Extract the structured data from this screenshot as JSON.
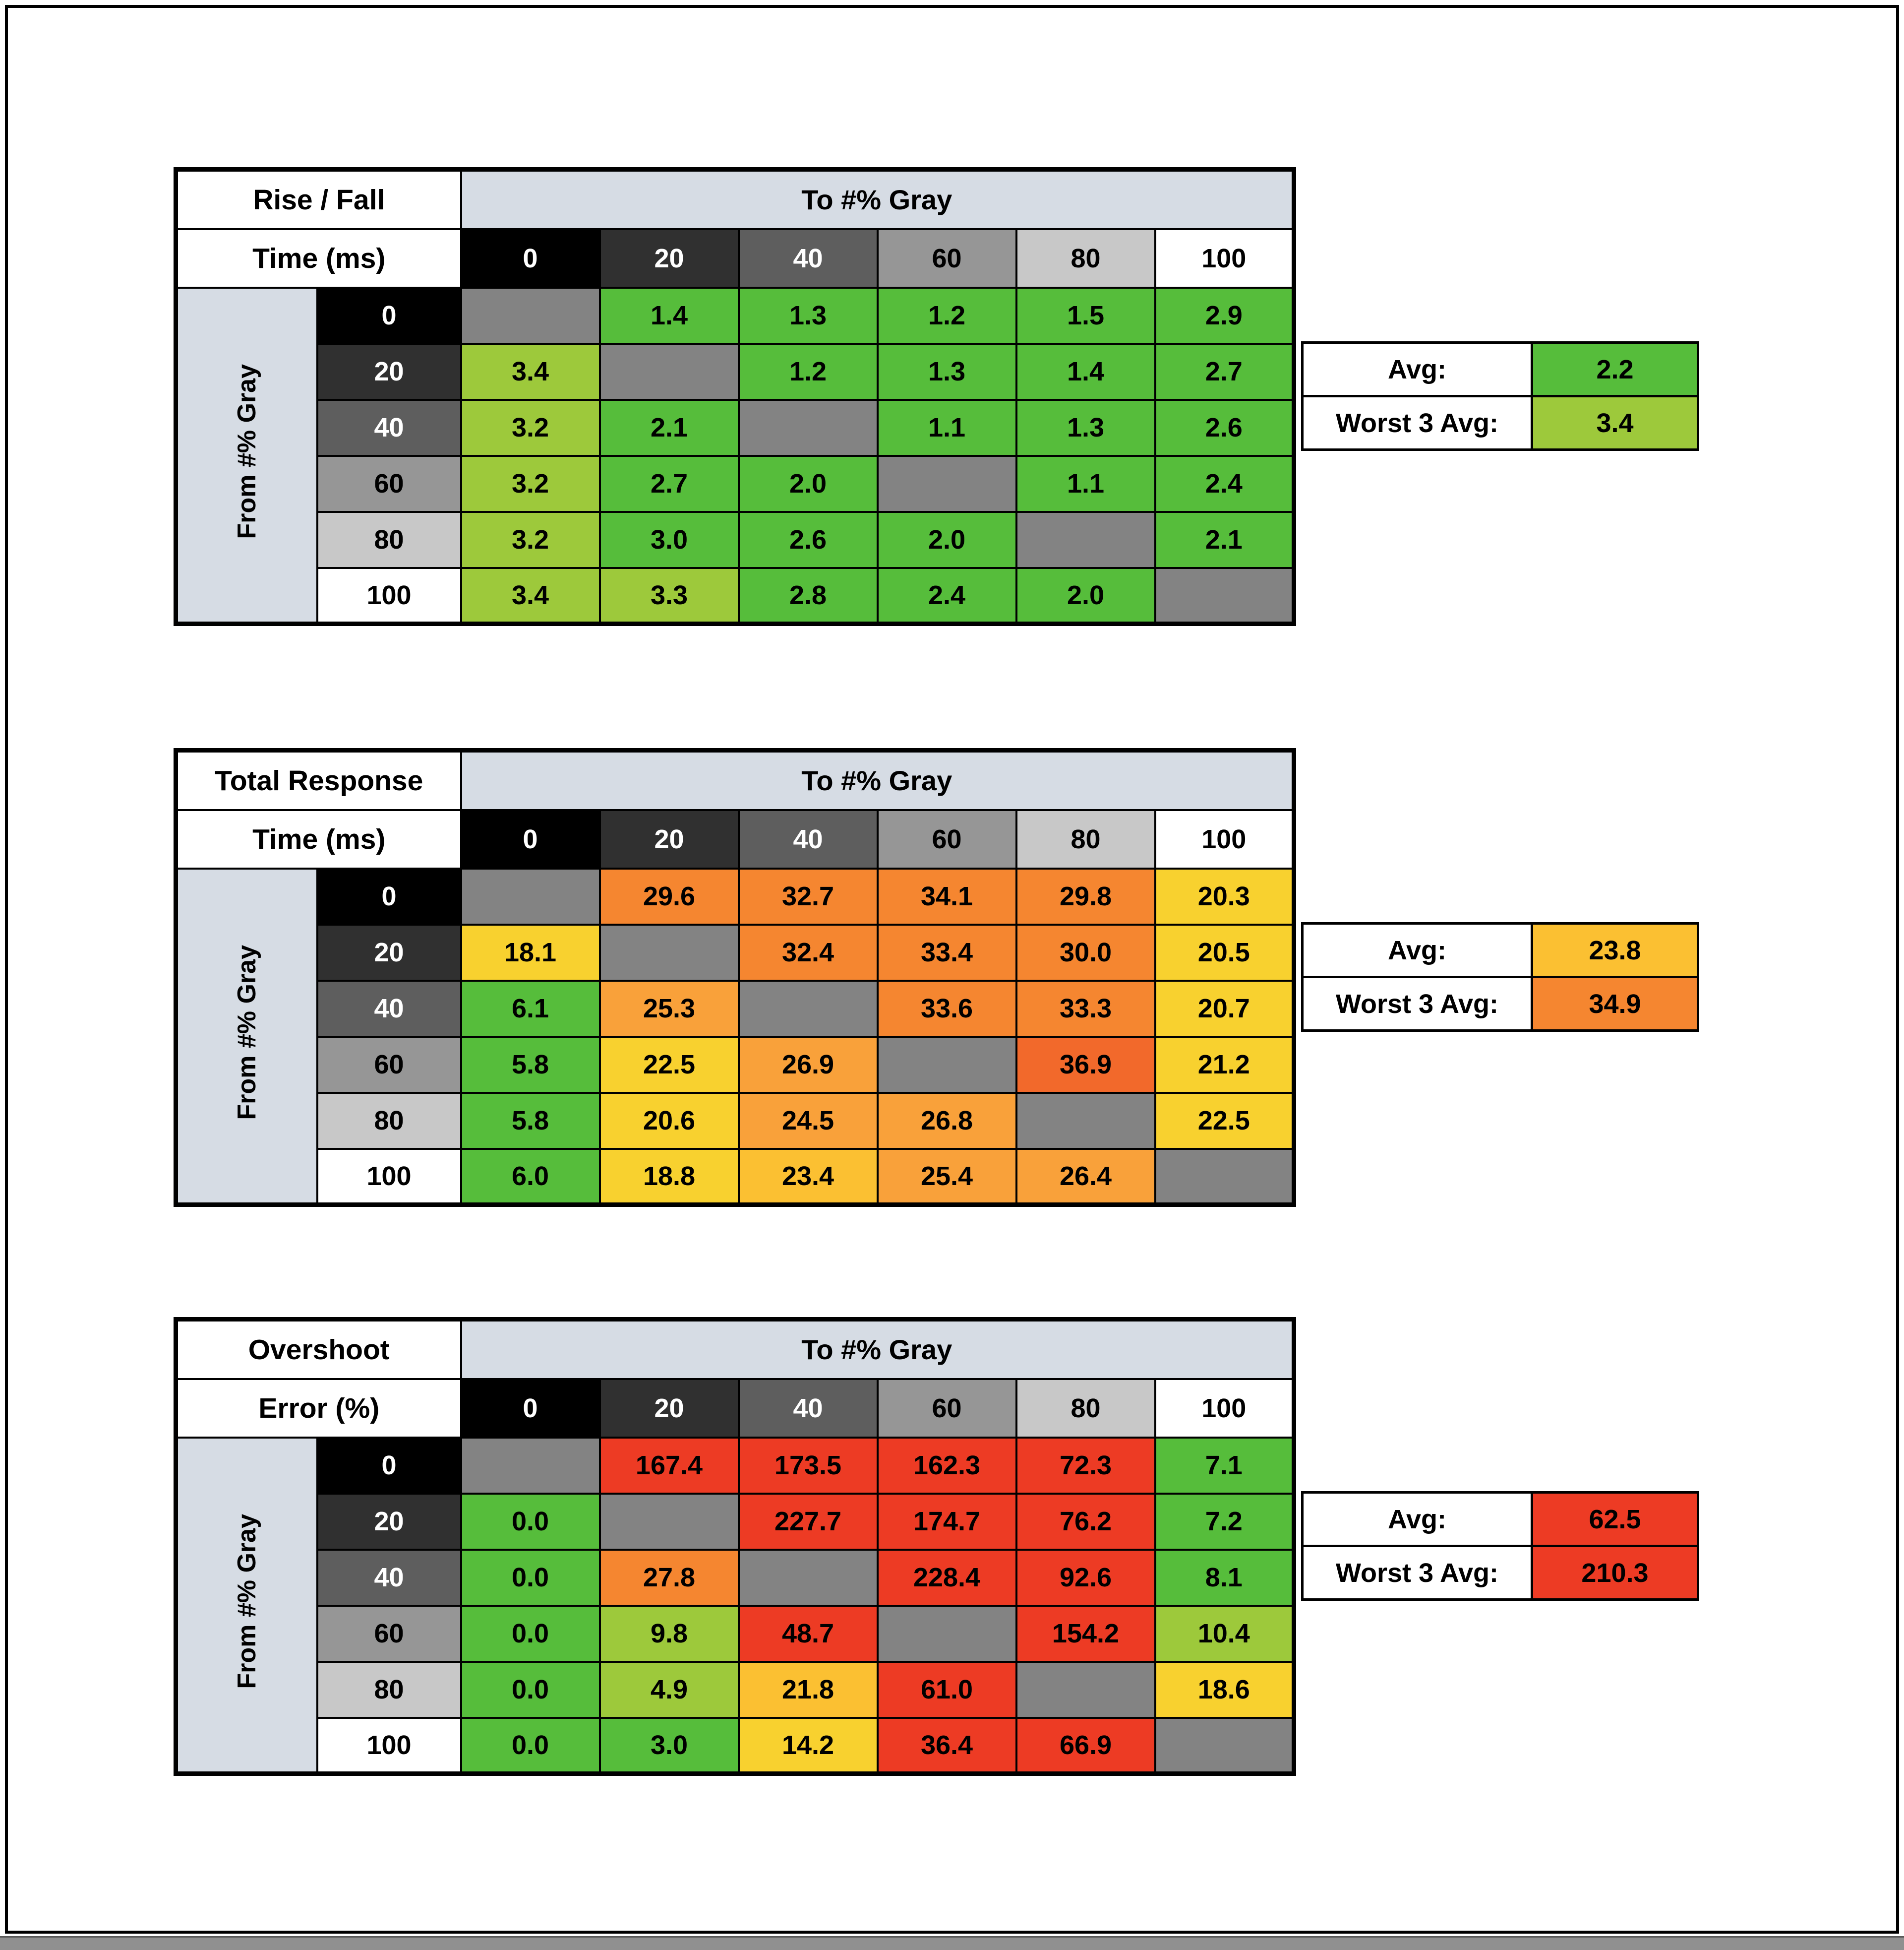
{
  "palette": {
    "green": "#56bd3b",
    "lime": "#9dc93b",
    "yellow": "#f8d12f",
    "gold": "#fbc032",
    "amber": "#f9a13a",
    "orange": "#f58630",
    "dorange": "#f2692b",
    "red": "#ed3b24",
    "diagonal_gray": "#838383",
    "header_blue_gray": "#d6dce4",
    "bottom_strip": "#909090",
    "gray_scale_bg": [
      "#000000",
      "#303030",
      "#5e5e5e",
      "#969696",
      "#c8c8c8",
      "#ffffff"
    ],
    "gray_scale_fg": [
      "#ffffff",
      "#ffffff",
      "#ffffff",
      "#000000",
      "#000000",
      "#000000"
    ]
  },
  "tables": [
    {
      "name": "rise-fall-time",
      "title": [
        "Rise / Fall",
        "Time (ms)"
      ],
      "to_header": "To #% Gray",
      "from_header": "From #% Gray",
      "cols": [
        "0",
        "20",
        "40",
        "60",
        "80",
        "100"
      ],
      "rows": [
        {
          "label": "0",
          "cells": [
            null,
            {
              "v": "1.4",
              "c": "green"
            },
            {
              "v": "1.3",
              "c": "green"
            },
            {
              "v": "1.2",
              "c": "green"
            },
            {
              "v": "1.5",
              "c": "green"
            },
            {
              "v": "2.9",
              "c": "green"
            }
          ]
        },
        {
          "label": "20",
          "cells": [
            {
              "v": "3.4",
              "c": "lime"
            },
            null,
            {
              "v": "1.2",
              "c": "green"
            },
            {
              "v": "1.3",
              "c": "green"
            },
            {
              "v": "1.4",
              "c": "green"
            },
            {
              "v": "2.7",
              "c": "green"
            }
          ]
        },
        {
          "label": "40",
          "cells": [
            {
              "v": "3.2",
              "c": "lime"
            },
            {
              "v": "2.1",
              "c": "green"
            },
            null,
            {
              "v": "1.1",
              "c": "green"
            },
            {
              "v": "1.3",
              "c": "green"
            },
            {
              "v": "2.6",
              "c": "green"
            }
          ]
        },
        {
          "label": "60",
          "cells": [
            {
              "v": "3.2",
              "c": "lime"
            },
            {
              "v": "2.7",
              "c": "green"
            },
            {
              "v": "2.0",
              "c": "green"
            },
            null,
            {
              "v": "1.1",
              "c": "green"
            },
            {
              "v": "2.4",
              "c": "green"
            }
          ]
        },
        {
          "label": "80",
          "cells": [
            {
              "v": "3.2",
              "c": "lime"
            },
            {
              "v": "3.0",
              "c": "green"
            },
            {
              "v": "2.6",
              "c": "green"
            },
            {
              "v": "2.0",
              "c": "green"
            },
            null,
            {
              "v": "2.1",
              "c": "green"
            }
          ]
        },
        {
          "label": "100",
          "cells": [
            {
              "v": "3.4",
              "c": "lime"
            },
            {
              "v": "3.3",
              "c": "lime"
            },
            {
              "v": "2.8",
              "c": "green"
            },
            {
              "v": "2.4",
              "c": "green"
            },
            {
              "v": "2.0",
              "c": "green"
            },
            null
          ]
        }
      ],
      "summary": {
        "avg_label": "Avg:",
        "avg": {
          "v": "2.2",
          "c": "green"
        },
        "worst_label": "Worst 3 Avg:",
        "worst": {
          "v": "3.4",
          "c": "lime"
        }
      }
    },
    {
      "name": "total-response-time",
      "title": [
        "Total Response",
        "Time (ms)"
      ],
      "to_header": "To #% Gray",
      "from_header": "From #% Gray",
      "cols": [
        "0",
        "20",
        "40",
        "60",
        "80",
        "100"
      ],
      "rows": [
        {
          "label": "0",
          "cells": [
            null,
            {
              "v": "29.6",
              "c": "orange"
            },
            {
              "v": "32.7",
              "c": "orange"
            },
            {
              "v": "34.1",
              "c": "orange"
            },
            {
              "v": "29.8",
              "c": "orange"
            },
            {
              "v": "20.3",
              "c": "yellow"
            }
          ]
        },
        {
          "label": "20",
          "cells": [
            {
              "v": "18.1",
              "c": "yellow"
            },
            null,
            {
              "v": "32.4",
              "c": "orange"
            },
            {
              "v": "33.4",
              "c": "orange"
            },
            {
              "v": "30.0",
              "c": "orange"
            },
            {
              "v": "20.5",
              "c": "yellow"
            }
          ]
        },
        {
          "label": "40",
          "cells": [
            {
              "v": "6.1",
              "c": "green"
            },
            {
              "v": "25.3",
              "c": "amber"
            },
            null,
            {
              "v": "33.6",
              "c": "orange"
            },
            {
              "v": "33.3",
              "c": "orange"
            },
            {
              "v": "20.7",
              "c": "yellow"
            }
          ]
        },
        {
          "label": "60",
          "cells": [
            {
              "v": "5.8",
              "c": "green"
            },
            {
              "v": "22.5",
              "c": "yellow"
            },
            {
              "v": "26.9",
              "c": "amber"
            },
            null,
            {
              "v": "36.9",
              "c": "dorange"
            },
            {
              "v": "21.2",
              "c": "yellow"
            }
          ]
        },
        {
          "label": "80",
          "cells": [
            {
              "v": "5.8",
              "c": "green"
            },
            {
              "v": "20.6",
              "c": "yellow"
            },
            {
              "v": "24.5",
              "c": "amber"
            },
            {
              "v": "26.8",
              "c": "amber"
            },
            null,
            {
              "v": "22.5",
              "c": "yellow"
            }
          ]
        },
        {
          "label": "100",
          "cells": [
            {
              "v": "6.0",
              "c": "green"
            },
            {
              "v": "18.8",
              "c": "yellow"
            },
            {
              "v": "23.4",
              "c": "gold"
            },
            {
              "v": "25.4",
              "c": "amber"
            },
            {
              "v": "26.4",
              "c": "amber"
            },
            null
          ]
        }
      ],
      "summary": {
        "avg_label": "Avg:",
        "avg": {
          "v": "23.8",
          "c": "gold"
        },
        "worst_label": "Worst 3 Avg:",
        "worst": {
          "v": "34.9",
          "c": "orange"
        }
      }
    },
    {
      "name": "overshoot-error",
      "title": [
        "Overshoot",
        "Error (%)"
      ],
      "to_header": "To #% Gray",
      "from_header": "From #% Gray",
      "cols": [
        "0",
        "20",
        "40",
        "60",
        "80",
        "100"
      ],
      "rows": [
        {
          "label": "0",
          "cells": [
            null,
            {
              "v": "167.4",
              "c": "red"
            },
            {
              "v": "173.5",
              "c": "red"
            },
            {
              "v": "162.3",
              "c": "red"
            },
            {
              "v": "72.3",
              "c": "red"
            },
            {
              "v": "7.1",
              "c": "green"
            }
          ]
        },
        {
          "label": "20",
          "cells": [
            {
              "v": "0.0",
              "c": "green"
            },
            null,
            {
              "v": "227.7",
              "c": "red"
            },
            {
              "v": "174.7",
              "c": "red"
            },
            {
              "v": "76.2",
              "c": "red"
            },
            {
              "v": "7.2",
              "c": "green"
            }
          ]
        },
        {
          "label": "40",
          "cells": [
            {
              "v": "0.0",
              "c": "green"
            },
            {
              "v": "27.8",
              "c": "orange"
            },
            null,
            {
              "v": "228.4",
              "c": "red"
            },
            {
              "v": "92.6",
              "c": "red"
            },
            {
              "v": "8.1",
              "c": "green"
            }
          ]
        },
        {
          "label": "60",
          "cells": [
            {
              "v": "0.0",
              "c": "green"
            },
            {
              "v": "9.8",
              "c": "lime"
            },
            {
              "v": "48.7",
              "c": "red"
            },
            null,
            {
              "v": "154.2",
              "c": "red"
            },
            {
              "v": "10.4",
              "c": "lime"
            }
          ]
        },
        {
          "label": "80",
          "cells": [
            {
              "v": "0.0",
              "c": "green"
            },
            {
              "v": "4.9",
              "c": "lime"
            },
            {
              "v": "21.8",
              "c": "gold"
            },
            {
              "v": "61.0",
              "c": "red"
            },
            null,
            {
              "v": "18.6",
              "c": "yellow"
            }
          ]
        },
        {
          "label": "100",
          "cells": [
            {
              "v": "0.0",
              "c": "green"
            },
            {
              "v": "3.0",
              "c": "green"
            },
            {
              "v": "14.2",
              "c": "yellow"
            },
            {
              "v": "36.4",
              "c": "red"
            },
            {
              "v": "66.9",
              "c": "red"
            },
            null
          ]
        }
      ],
      "summary": {
        "avg_label": "Avg:",
        "avg": {
          "v": "62.5",
          "c": "red"
        },
        "worst_label": "Worst 3 Avg:",
        "worst": {
          "v": "210.3",
          "c": "red"
        }
      }
    }
  ],
  "chart_data": [
    {
      "type": "heatmap",
      "title": "Rise / Fall Time (ms)",
      "xlabel": "To #% Gray",
      "ylabel": "From #% Gray",
      "x": [
        0,
        20,
        40,
        60,
        80,
        100
      ],
      "y": [
        0,
        20,
        40,
        60,
        80,
        100
      ],
      "values": [
        [
          null,
          1.4,
          1.3,
          1.2,
          1.5,
          2.9
        ],
        [
          3.4,
          null,
          1.2,
          1.3,
          1.4,
          2.7
        ],
        [
          3.2,
          2.1,
          null,
          1.1,
          1.3,
          2.6
        ],
        [
          3.2,
          2.7,
          2.0,
          null,
          1.1,
          2.4
        ],
        [
          3.2,
          3.0,
          2.6,
          2.0,
          null,
          2.1
        ],
        [
          3.4,
          3.3,
          2.8,
          2.4,
          2.0,
          null
        ]
      ],
      "avg": 2.2,
      "worst_3_avg": 3.4
    },
    {
      "type": "heatmap",
      "title": "Total Response Time (ms)",
      "xlabel": "To #% Gray",
      "ylabel": "From #% Gray",
      "x": [
        0,
        20,
        40,
        60,
        80,
        100
      ],
      "y": [
        0,
        20,
        40,
        60,
        80,
        100
      ],
      "values": [
        [
          null,
          29.6,
          32.7,
          34.1,
          29.8,
          20.3
        ],
        [
          18.1,
          null,
          32.4,
          33.4,
          30.0,
          20.5
        ],
        [
          6.1,
          25.3,
          null,
          33.6,
          33.3,
          20.7
        ],
        [
          5.8,
          22.5,
          26.9,
          null,
          36.9,
          21.2
        ],
        [
          5.8,
          20.6,
          24.5,
          26.8,
          null,
          22.5
        ],
        [
          6.0,
          18.8,
          23.4,
          25.4,
          26.4,
          null
        ]
      ],
      "avg": 23.8,
      "worst_3_avg": 34.9
    },
    {
      "type": "heatmap",
      "title": "Overshoot Error (%)",
      "xlabel": "To #% Gray",
      "ylabel": "From #% Gray",
      "x": [
        0,
        20,
        40,
        60,
        80,
        100
      ],
      "y": [
        0,
        20,
        40,
        60,
        80,
        100
      ],
      "values": [
        [
          null,
          167.4,
          173.5,
          162.3,
          72.3,
          7.1
        ],
        [
          0.0,
          null,
          227.7,
          174.7,
          76.2,
          7.2
        ],
        [
          0.0,
          27.8,
          null,
          228.4,
          92.6,
          8.1
        ],
        [
          0.0,
          9.8,
          48.7,
          null,
          154.2,
          10.4
        ],
        [
          0.0,
          4.9,
          21.8,
          61.0,
          null,
          18.6
        ],
        [
          0.0,
          3.0,
          14.2,
          36.4,
          66.9,
          null
        ]
      ],
      "avg": 62.5,
      "worst_3_avg": 210.3
    }
  ]
}
